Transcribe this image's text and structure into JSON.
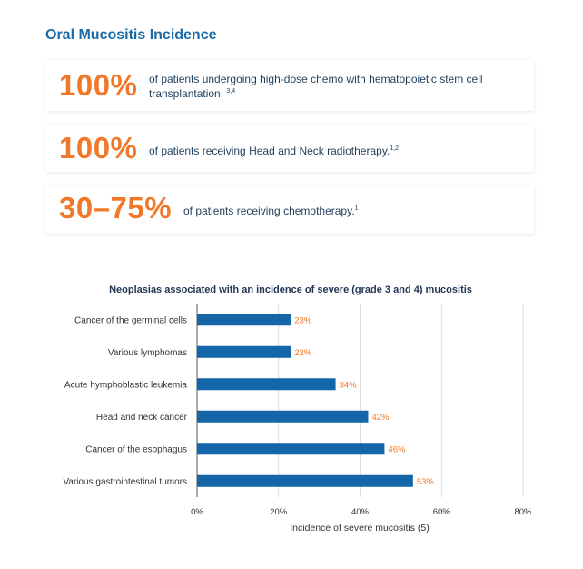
{
  "title": "Oral Mucositis Incidence",
  "stats": [
    {
      "value": "100%",
      "text": "of patients undergoing high-dose chemo with hematopoietic stem cell transplantation.",
      "ref": "3,4"
    },
    {
      "value": "100%",
      "text": "of patients receiving Head and Neck radiotherapy.",
      "ref": "1,2"
    },
    {
      "value": "30–75%",
      "text": "of patients receiving chemotherapy.",
      "ref": "1"
    }
  ],
  "chart_data": {
    "type": "bar",
    "orientation": "horizontal",
    "title": "Neoplasias associated with an incidence of severe (grade 3 and 4) mucositis",
    "categories": [
      "Cancer of the germinal cells",
      "Various lymphomas",
      "Acute hymphoblastic leukemia",
      "Head and neck cancer",
      "Cancer of the esophagus",
      "Various gastrointestinal tumors"
    ],
    "values": [
      23,
      23,
      34,
      42,
      46,
      53
    ],
    "value_labels": [
      "23%",
      "23%",
      "34%",
      "42%",
      "46%",
      "53%"
    ],
    "xlabel": "Incidence of severe mucositis (5)",
    "xlim": [
      0,
      80
    ],
    "xticks": [
      0,
      20,
      40,
      60,
      80
    ],
    "xtick_labels": [
      "0%",
      "20%",
      "40%",
      "60%",
      "80%"
    ],
    "grid": true,
    "bar_color": "#1566a8",
    "label_color": "#f07828"
  }
}
